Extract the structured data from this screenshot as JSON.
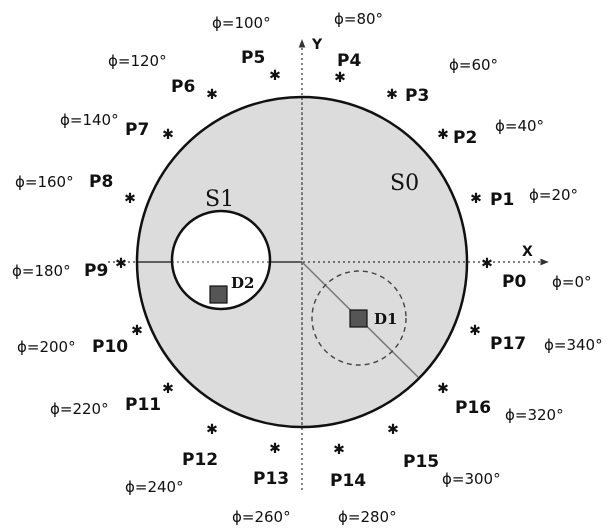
{
  "regions": {
    "s0": "S0",
    "s1": "S1"
  },
  "detectors": {
    "d1": "D1",
    "d2": "D2"
  },
  "axes": {
    "x": "X",
    "y": "Y"
  },
  "points": [
    "P0",
    "P1",
    "P2",
    "P3",
    "P4",
    "P5",
    "P6",
    "P7",
    "P8",
    "P9",
    "P10",
    "P11",
    "P12",
    "P13",
    "P14",
    "P15",
    "P16",
    "P17"
  ],
  "angles": [
    "ϕ=0°",
    "ϕ=20°",
    "ϕ=40°",
    "ϕ=60°",
    "ϕ=80°",
    "ϕ=100°",
    "ϕ=120°",
    "ϕ=140°",
    "ϕ=160°",
    "ϕ=180°",
    "ϕ=200°",
    "ϕ=220°",
    "ϕ=240°",
    "ϕ=260°",
    "ϕ=280°",
    "ϕ=300°",
    "ϕ=320°",
    "ϕ=340°"
  ],
  "colors": {
    "disk": "#dcdcdc",
    "detector": "#555555",
    "line": "#111111"
  }
}
